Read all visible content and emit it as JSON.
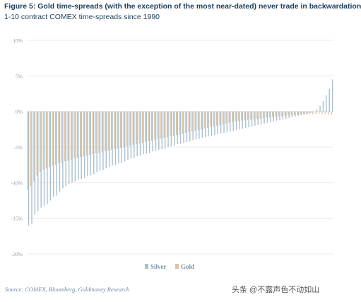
{
  "title": "Figure 5: Gold time-spreads (with the exception of the most near-dated) never trade in backwardation",
  "subtitle": "1-10 contract COMEX time-spreads since 1990",
  "source": "Source: COMEX, Bloomberg, Goldmoney Research",
  "watermark": "头条 @不露声色不动如山",
  "colors": {
    "silver": "#a9bfd3",
    "gold": "#dbc3a1",
    "grid": "#e4e4e4",
    "tick": "#8a9aab"
  },
  "chart_data": {
    "type": "bar",
    "title": "Figure 5: Gold time-spreads (with the exception of the most near-dated) never trade in backwardation",
    "subtitle": "1-10 contract COMEX time-spreads since 1990",
    "ylim": [
      -20,
      10
    ],
    "yticks": [
      10,
      5,
      0,
      -5,
      -10,
      -15,
      -20
    ],
    "ytick_labels": [
      "10%",
      "5%",
      "0%",
      "-5%",
      "-10%",
      "-15%",
      "-20%"
    ],
    "grid": true,
    "legend": {
      "placement": "bottom-center",
      "entries": [
        "Silver",
        "Gold"
      ]
    },
    "series": [
      {
        "name": "Silver",
        "color": "#a9bfd3",
        "values": [
          -16.0,
          -15.8,
          -14.5,
          -14.0,
          -13.5,
          -13.2,
          -13.0,
          -12.5,
          -12.0,
          -11.8,
          -11.3,
          -10.8,
          -10.5,
          -10.2,
          -10.0,
          -9.8,
          -9.6,
          -9.5,
          -9.3,
          -9.1,
          -9.0,
          -8.8,
          -8.5,
          -8.3,
          -8.2,
          -8.0,
          -7.8,
          -7.6,
          -7.5,
          -7.3,
          -7.2,
          -7.0,
          -6.8,
          -6.6,
          -6.5,
          -6.3,
          -6.2,
          -6.0,
          -5.9,
          -5.8,
          -5.6,
          -5.5,
          -5.4,
          -5.3,
          -5.2,
          -5.0,
          -4.9,
          -4.8,
          -4.6,
          -4.5,
          -4.4,
          -4.3,
          -4.2,
          -4.0,
          -3.9,
          -3.8,
          -3.7,
          -3.6,
          -3.5,
          -3.4,
          -3.3,
          -3.2,
          -3.1,
          -3.0,
          -2.9,
          -2.8,
          -2.7,
          -2.6,
          -2.5,
          -2.4,
          -2.3,
          -2.2,
          -2.1,
          -2.0,
          -1.9,
          -1.8,
          -1.7,
          -1.6,
          -1.5,
          -1.4,
          -1.3,
          -1.2,
          -1.1,
          -1.0,
          -0.9,
          -0.8,
          -0.7,
          -0.6,
          -0.5,
          -0.4,
          -0.3,
          -0.2,
          0.0,
          0.3,
          0.8,
          1.5,
          2.3,
          3.2,
          4.5
        ]
      },
      {
        "name": "Gold",
        "color": "#dbc3a1",
        "values": [
          -11.0,
          -10.5,
          -9.8,
          -9.0,
          -8.5,
          -8.2,
          -8.0,
          -7.8,
          -7.6,
          -7.5,
          -7.3,
          -7.2,
          -7.0,
          -6.9,
          -6.8,
          -6.6,
          -6.5,
          -6.4,
          -6.3,
          -6.2,
          -6.1,
          -6.0,
          -5.9,
          -5.8,
          -5.7,
          -5.6,
          -5.5,
          -5.4,
          -5.3,
          -5.2,
          -5.1,
          -5.0,
          -4.9,
          -4.8,
          -4.7,
          -4.6,
          -4.5,
          -4.4,
          -4.3,
          -4.2,
          -4.1,
          -4.0,
          -3.9,
          -3.8,
          -3.7,
          -3.6,
          -3.5,
          -3.4,
          -3.3,
          -3.2,
          -3.1,
          -3.0,
          -2.9,
          -2.8,
          -2.7,
          -2.6,
          -2.5,
          -2.4,
          -2.3,
          -2.2,
          -2.1,
          -2.0,
          -1.9,
          -1.8,
          -1.7,
          -1.6,
          -1.5,
          -1.4,
          -1.35,
          -1.3,
          -1.25,
          -1.2,
          -1.15,
          -1.1,
          -1.05,
          -1.0,
          -0.95,
          -0.9,
          -0.85,
          -0.8,
          -0.75,
          -0.7,
          -0.65,
          -0.6,
          -0.55,
          -0.5,
          -0.5,
          -0.45,
          -0.45,
          -0.4,
          -0.4,
          -0.4,
          -0.35,
          -0.35,
          -0.3,
          -0.3,
          -0.3,
          -0.4,
          -0.5
        ]
      }
    ]
  }
}
